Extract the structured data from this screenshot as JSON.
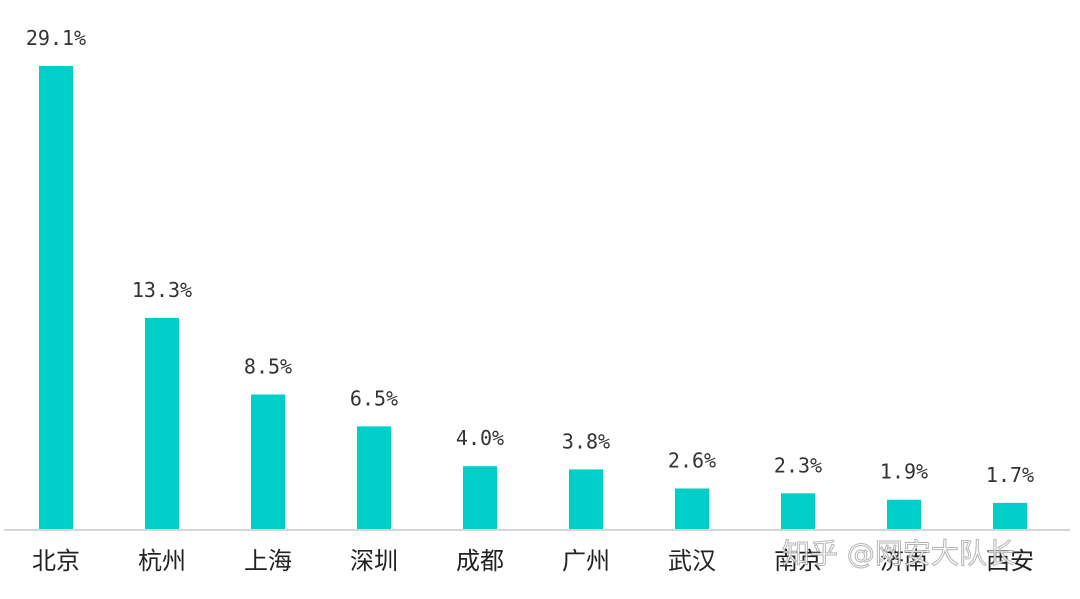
{
  "chart_data": {
    "type": "bar",
    "categories": [
      "北京",
      "杭州",
      "上海",
      "深圳",
      "成都",
      "广州",
      "武汉",
      "南京",
      "济南",
      "西安"
    ],
    "values": [
      29.1,
      13.3,
      8.5,
      6.5,
      4.0,
      3.8,
      2.6,
      2.3,
      1.9,
      1.7
    ],
    "value_labels": [
      "29.1%",
      "13.3%",
      "8.5%",
      "6.5%",
      "4.0%",
      "3.8%",
      "2.6%",
      "2.3%",
      "1.9%",
      "1.7%"
    ],
    "ylim": [
      0,
      30
    ],
    "grid": false,
    "bar_color": "#00cec8"
  },
  "watermark": "知乎 @网安大队长"
}
